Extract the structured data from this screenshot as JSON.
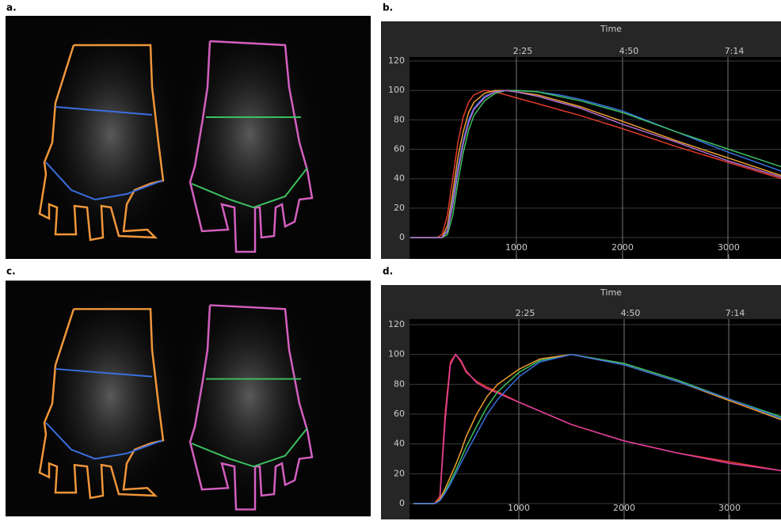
{
  "panel_labels": [
    "a.",
    "b.",
    "c.",
    "d."
  ],
  "chart_data": [
    {
      "type": "line",
      "x2label": "Time",
      "x": [
        0,
        250,
        300,
        350,
        400,
        450,
        500,
        550,
        600,
        700,
        800,
        900,
        1000,
        1200,
        1400,
        1600,
        2000,
        2500,
        3000,
        3500
      ],
      "series": [
        {
          "color": "#e23a2a",
          "values": [
            0,
            0,
            2,
            15,
            40,
            65,
            82,
            92,
            97,
            100,
            99,
            97,
            95,
            91,
            87,
            83,
            74,
            62,
            51,
            40
          ]
        },
        {
          "color": "#f0a030",
          "values": [
            0,
            0,
            0,
            8,
            30,
            55,
            72,
            85,
            92,
            98,
            100,
            100,
            99,
            97,
            93,
            89,
            79,
            66,
            54,
            42
          ]
        },
        {
          "color": "#3a6fe0",
          "values": [
            0,
            0,
            0,
            5,
            25,
            48,
            66,
            80,
            88,
            96,
            99,
            100,
            100,
            99,
            97,
            94,
            86,
            72,
            58,
            45
          ]
        },
        {
          "color": "#3cc060",
          "values": [
            0,
            0,
            0,
            2,
            15,
            38,
            58,
            73,
            83,
            93,
            98,
            100,
            100,
            99,
            96,
            93,
            85,
            72,
            60,
            48
          ]
        },
        {
          "color": "#b070d0",
          "values": [
            0,
            0,
            0,
            4,
            22,
            45,
            64,
            78,
            87,
            95,
            99,
            100,
            99,
            96,
            92,
            88,
            77,
            65,
            52,
            41
          ]
        }
      ],
      "xlim": [
        -7,
        3493
      ],
      "xticks": [
        1000,
        2000,
        3000
      ],
      "x2ticks": [
        {
          "value": 1000,
          "label": "2:25"
        },
        {
          "value": 2000,
          "label": "4:50"
        },
        {
          "value": 2993,
          "label": "7:14"
        }
      ],
      "ylim": [
        -14.5,
        122.7
      ],
      "yticks": [
        0,
        20,
        40,
        60,
        80,
        100,
        120
      ],
      "grid": true
    },
    {
      "type": "line",
      "x2label": "Time",
      "x": [
        0,
        200,
        250,
        300,
        350,
        400,
        450,
        500,
        600,
        700,
        800,
        1000,
        1200,
        1500,
        2000,
        2500,
        3000,
        3500
      ],
      "series": [
        {
          "color": "#e23a2a",
          "values": [
            0,
            0,
            5,
            60,
            95,
            100,
            95,
            88,
            82,
            78,
            75,
            68,
            62,
            53,
            42,
            34,
            28,
            22
          ]
        },
        {
          "color": "#e040a0",
          "values": [
            0,
            0,
            3,
            55,
            93,
            100,
            96,
            89,
            81,
            77,
            74,
            68,
            62,
            53,
            42,
            34,
            27,
            22
          ]
        },
        {
          "color": "#3cc060",
          "values": [
            0,
            0,
            2,
            8,
            15,
            22,
            30,
            38,
            52,
            65,
            75,
            88,
            96,
            100,
            94,
            83,
            70,
            58
          ]
        },
        {
          "color": "#f0a030",
          "values": [
            0,
            0,
            3,
            10,
            18,
            26,
            35,
            45,
            60,
            72,
            80,
            90,
            97,
            100,
            93,
            82,
            69,
            56
          ]
        },
        {
          "color": "#3a6fe0",
          "values": [
            0,
            0,
            2,
            7,
            13,
            20,
            27,
            34,
            47,
            60,
            70,
            85,
            95,
            100,
            93,
            82,
            70,
            57
          ]
        }
      ],
      "xlim": [
        -38,
        3489
      ],
      "xticks": [
        1000,
        2000,
        3000
      ],
      "x2ticks": [
        {
          "value": 1000,
          "label": "2:25"
        },
        {
          "value": 2000,
          "label": "4:50"
        },
        {
          "value": 2993,
          "label": "7:14"
        }
      ],
      "ylim": [
        -10.6,
        123.7
      ],
      "yticks": [
        0,
        20,
        40,
        60,
        80,
        100,
        120
      ],
      "grid": true
    }
  ]
}
